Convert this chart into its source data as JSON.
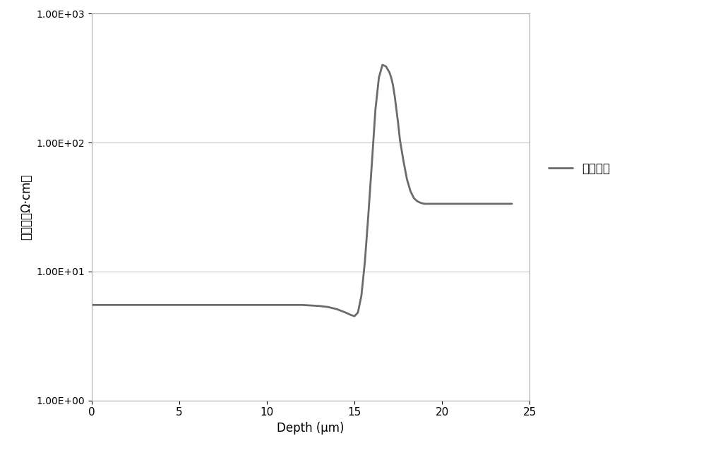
{
  "xlabel": "Depth (μm)",
  "ylabel": "电阵率（Ω·cm）",
  "legend_label": "器件要求",
  "line_color": "#6b6b6b",
  "line_width": 2.0,
  "background_color": "#ffffff",
  "grid_color": "#c8c8c8",
  "xlim": [
    0,
    25
  ],
  "ylim_log": [
    1.0,
    1000.0
  ],
  "yticks": [
    1.0,
    10.0,
    100.0,
    1000.0
  ],
  "ytick_labels": [
    "1.00E+00",
    "1.00E+01",
    "1.00E+02",
    "1.00E+03"
  ],
  "xticks": [
    0,
    5,
    10,
    15,
    20,
    25
  ],
  "figsize": [
    10.0,
    6.45
  ],
  "dpi": 100,
  "x": [
    0.0,
    0.5,
    1.0,
    2.0,
    3.0,
    4.0,
    5.0,
    6.0,
    7.0,
    8.0,
    9.0,
    10.0,
    11.0,
    12.0,
    13.0,
    13.5,
    14.0,
    14.5,
    14.8,
    15.0,
    15.2,
    15.4,
    15.6,
    15.8,
    16.0,
    16.2,
    16.4,
    16.6,
    16.8,
    17.0,
    17.1,
    17.2,
    17.3,
    17.4,
    17.5,
    17.6,
    17.8,
    18.0,
    18.2,
    18.4,
    18.6,
    18.8,
    19.0,
    19.5,
    20.0,
    20.5,
    21.0,
    21.5,
    22.0,
    22.5,
    23.0,
    23.5,
    24.0
  ],
  "y": [
    5.5,
    5.5,
    5.5,
    5.5,
    5.5,
    5.5,
    5.5,
    5.5,
    5.5,
    5.5,
    5.5,
    5.5,
    5.5,
    5.5,
    5.4,
    5.3,
    5.1,
    4.8,
    4.6,
    4.5,
    4.8,
    6.5,
    12.0,
    28.0,
    70.0,
    180.0,
    320.0,
    400.0,
    390.0,
    350.0,
    320.0,
    280.0,
    230.0,
    180.0,
    140.0,
    105.0,
    72.0,
    52.0,
    42.0,
    37.0,
    35.0,
    34.0,
    33.5,
    33.5,
    33.5,
    33.5,
    33.5,
    33.5,
    33.5,
    33.5,
    33.5,
    33.5,
    33.5
  ]
}
